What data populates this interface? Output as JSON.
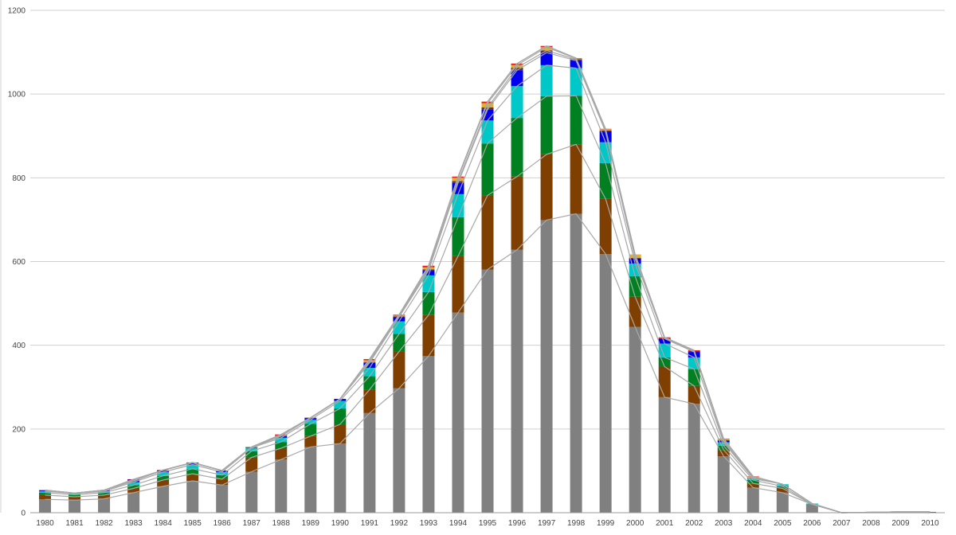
{
  "chart_data": {
    "type": "bar",
    "stacked": true,
    "title": "",
    "xlabel": "",
    "ylabel": "",
    "ylim": [
      0,
      1200
    ],
    "yticks": [
      0,
      200,
      400,
      600,
      800,
      1000,
      1200
    ],
    "grid": true,
    "legend": "none",
    "connector_lines": true,
    "categories": [
      "1980",
      "1981",
      "1982",
      "1983",
      "1984",
      "1985",
      "1986",
      "1987",
      "1988",
      "1989",
      "1990",
      "1991",
      "1992",
      "1993",
      "1994",
      "1995",
      "1996",
      "1997",
      "1998",
      "1999",
      "2000",
      "2001",
      "2002",
      "2003",
      "2004",
      "2005",
      "2006",
      "2007",
      "2008",
      "2009",
      "2010"
    ],
    "series": [
      {
        "color": "#808080",
        "values": [
          32,
          30,
          33,
          48,
          63,
          76,
          66,
          98,
          127,
          157,
          165,
          238,
          297,
          374,
          478,
          581,
          628,
          699,
          714,
          618,
          444,
          276,
          260,
          135,
          60,
          48,
          20,
          0,
          0,
          0,
          0
        ]
      },
      {
        "color": "#7f3f00",
        "values": [
          10,
          8,
          9,
          10,
          15,
          17,
          14,
          34,
          27,
          26,
          46,
          56,
          88,
          98,
          135,
          177,
          175,
          157,
          166,
          132,
          72,
          73,
          43,
          15,
          10,
          10,
          0,
          0,
          1,
          2,
          0
        ]
      },
      {
        "color": "#008020",
        "values": [
          6,
          5,
          6,
          8,
          10,
          12,
          10,
          15,
          15,
          29,
          38,
          32,
          42,
          55,
          93,
          124,
          140,
          139,
          116,
          85,
          49,
          22,
          40,
          10,
          8,
          5,
          0,
          0,
          0,
          0,
          2
        ]
      },
      {
        "color": "#00c8c8",
        "values": [
          3,
          3,
          3,
          7,
          9,
          10,
          7,
          8,
          10,
          10,
          18,
          20,
          30,
          40,
          55,
          55,
          76,
          74,
          66,
          50,
          30,
          33,
          28,
          8,
          4,
          5,
          2,
          0,
          0,
          0,
          0
        ]
      },
      {
        "color": "#0000ee",
        "values": [
          2,
          0,
          2,
          3,
          4,
          4,
          3,
          0,
          4,
          4,
          4,
          12,
          10,
          11,
          27,
          26,
          38,
          30,
          18,
          25,
          12,
          12,
          13,
          4,
          0,
          0,
          0,
          0,
          0,
          0,
          0
        ]
      },
      {
        "color": "#6b2c2c",
        "values": [
          1,
          1,
          1,
          1,
          1,
          1,
          1,
          1,
          1,
          1,
          1,
          2,
          2,
          3,
          4,
          5,
          6,
          5,
          3,
          3,
          2,
          1,
          2,
          1,
          1,
          0,
          0,
          0,
          0,
          0,
          0
        ]
      },
      {
        "color": "#e0b030",
        "values": [
          0,
          0,
          0,
          0,
          0,
          0,
          0,
          0,
          0,
          0,
          0,
          4,
          2,
          5,
          8,
          10,
          6,
          8,
          2,
          3,
          8,
          0,
          0,
          3,
          3,
          0,
          0,
          0,
          0,
          0,
          0
        ]
      },
      {
        "color": "#ee2020",
        "values": [
          0,
          0,
          0,
          0,
          0,
          0,
          0,
          1,
          3,
          0,
          0,
          3,
          2,
          4,
          3,
          4,
          4,
          3,
          1,
          1,
          0,
          2,
          2,
          1,
          1,
          0,
          0,
          0,
          0,
          0,
          0
        ]
      },
      {
        "color": "#800080",
        "values": [
          0,
          0,
          0,
          3,
          0,
          0,
          0,
          0,
          0,
          0,
          0,
          0,
          0,
          0,
          0,
          0,
          0,
          0,
          0,
          0,
          0,
          0,
          0,
          0,
          0,
          0,
          0,
          0,
          0,
          0,
          0
        ]
      }
    ]
  }
}
